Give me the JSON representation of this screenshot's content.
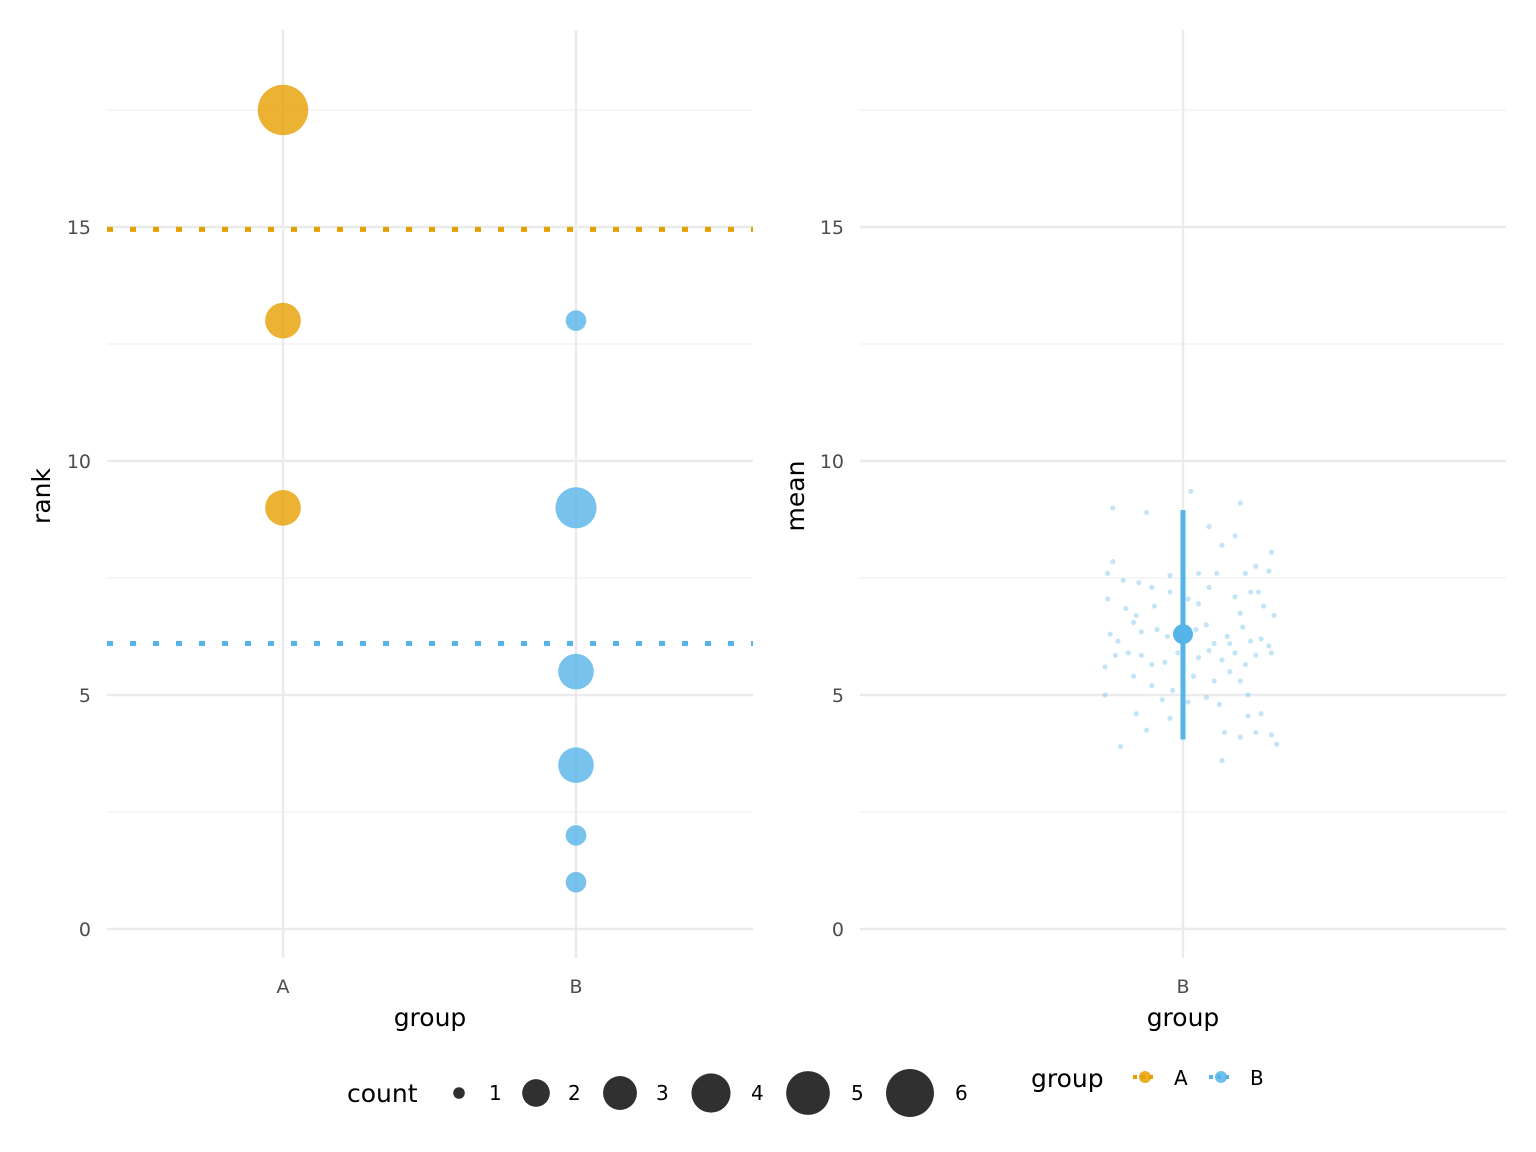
{
  "colors": {
    "A": "#E69F00",
    "B": "#56B4E9",
    "grid_major": "#EBEBEB",
    "grid_minor": "#F3F3F3",
    "legend_size_fill": "#1a1a1a"
  },
  "chart_data": [
    {
      "type": "scatter",
      "panel": "left",
      "xlabel": "group",
      "ylabel": "rank",
      "categories": [
        "A",
        "B"
      ],
      "ylim": [
        -0.6,
        18.7
      ],
      "yticks": [
        0,
        5,
        10,
        15
      ],
      "grid": true,
      "series": [
        {
          "name": "A",
          "points": [
            {
              "x": "A",
              "y": 17.5,
              "count": 6
            },
            {
              "x": "A",
              "y": 13,
              "count": 3
            },
            {
              "x": "A",
              "y": 9,
              "count": 3
            }
          ],
          "hline": 14.95
        },
        {
          "name": "B",
          "points": [
            {
              "x": "B",
              "y": 13,
              "count": 1
            },
            {
              "x": "B",
              "y": 9,
              "count": 4
            },
            {
              "x": "B",
              "y": 5.5,
              "count": 3
            },
            {
              "x": "B",
              "y": 3.5,
              "count": 3
            },
            {
              "x": "B",
              "y": 2,
              "count": 1
            },
            {
              "x": "B",
              "y": 1,
              "count": 1
            }
          ],
          "hline": 6.1
        }
      ]
    },
    {
      "type": "scatter",
      "panel": "right",
      "xlabel": "group",
      "ylabel": "mean",
      "categories": [
        "B"
      ],
      "ylim": [
        -0.6,
        18.7
      ],
      "yticks": [
        0,
        5,
        10,
        15
      ],
      "grid": true,
      "summary": {
        "x": "B",
        "mean": 6.3,
        "lower": 4.05,
        "upper": 8.95
      },
      "jitter_points": [
        [
          -0.27,
          9.0
        ],
        [
          -0.14,
          8.9
        ],
        [
          0.03,
          9.35
        ],
        [
          0.22,
          9.1
        ],
        [
          0.1,
          8.6
        ],
        [
          0.15,
          8.2
        ],
        [
          0.2,
          8.4
        ],
        [
          0.34,
          8.05
        ],
        [
          -0.27,
          7.85
        ],
        [
          -0.29,
          7.6
        ],
        [
          -0.23,
          7.45
        ],
        [
          -0.17,
          7.4
        ],
        [
          -0.12,
          7.3
        ],
        [
          -0.05,
          7.55
        ],
        [
          0.0,
          7.85
        ],
        [
          0.06,
          7.6
        ],
        [
          0.13,
          7.6
        ],
        [
          0.24,
          7.6
        ],
        [
          0.28,
          7.75
        ],
        [
          0.33,
          7.65
        ],
        [
          -0.29,
          7.05
        ],
        [
          -0.22,
          6.85
        ],
        [
          -0.18,
          6.7
        ],
        [
          -0.11,
          6.9
        ],
        [
          -0.05,
          7.2
        ],
        [
          0.02,
          7.05
        ],
        [
          0.06,
          6.95
        ],
        [
          0.1,
          7.3
        ],
        [
          0.2,
          7.1
        ],
        [
          0.26,
          7.2
        ],
        [
          0.29,
          7.2
        ],
        [
          0.31,
          6.9
        ],
        [
          0.35,
          6.7
        ],
        [
          0.22,
          6.75
        ],
        [
          -0.28,
          6.3
        ],
        [
          -0.25,
          6.15
        ],
        [
          -0.19,
          6.55
        ],
        [
          -0.16,
          6.35
        ],
        [
          -0.1,
          6.4
        ],
        [
          -0.06,
          6.25
        ],
        [
          0.05,
          6.4
        ],
        [
          0.12,
          6.1
        ],
        [
          0.17,
          6.25
        ],
        [
          0.23,
          6.45
        ],
        [
          0.26,
          6.15
        ],
        [
          0.3,
          6.2
        ],
        [
          0.33,
          6.05
        ],
        [
          0.09,
          6.5
        ],
        [
          -0.3,
          5.6
        ],
        [
          -0.26,
          5.85
        ],
        [
          -0.21,
          5.9
        ],
        [
          -0.16,
          5.85
        ],
        [
          -0.12,
          5.65
        ],
        [
          -0.07,
          5.7
        ],
        [
          -0.02,
          5.9
        ],
        [
          0.06,
          5.8
        ],
        [
          0.1,
          5.95
        ],
        [
          0.15,
          5.75
        ],
        [
          0.2,
          5.9
        ],
        [
          0.24,
          5.65
        ],
        [
          0.28,
          5.85
        ],
        [
          0.34,
          5.9
        ],
        [
          0.18,
          6.1
        ],
        [
          -0.19,
          5.4
        ],
        [
          -0.12,
          5.2
        ],
        [
          -0.04,
          5.1
        ],
        [
          0.04,
          5.4
        ],
        [
          0.12,
          5.3
        ],
        [
          0.18,
          5.5
        ],
        [
          0.22,
          5.3
        ],
        [
          0.25,
          5.0
        ],
        [
          -0.3,
          5.0
        ],
        [
          -0.08,
          4.9
        ],
        [
          0.02,
          4.85
        ],
        [
          0.09,
          4.95
        ],
        [
          0.14,
          4.8
        ],
        [
          -0.18,
          4.6
        ],
        [
          -0.05,
          4.5
        ],
        [
          0.25,
          4.55
        ],
        [
          0.3,
          4.6
        ],
        [
          -0.14,
          4.25
        ],
        [
          0.16,
          4.2
        ],
        [
          0.22,
          4.1
        ],
        [
          0.28,
          4.2
        ],
        [
          0.34,
          4.15
        ],
        [
          -0.24,
          3.9
        ],
        [
          0.36,
          3.95
        ],
        [
          0.15,
          3.6
        ]
      ]
    }
  ],
  "legend_size": {
    "title": "count",
    "labels": [
      "1",
      "2",
      "3",
      "4",
      "5",
      "6"
    ]
  },
  "legend_color": {
    "title": "group",
    "labels": [
      "A",
      "B"
    ]
  }
}
